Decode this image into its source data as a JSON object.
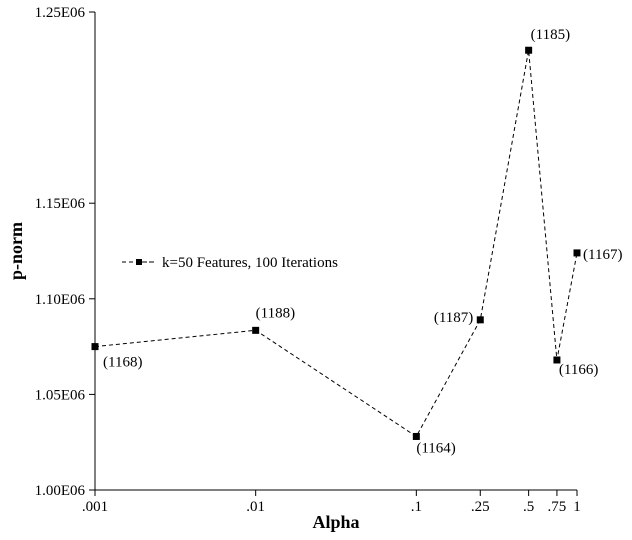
{
  "chart_data": {
    "type": "line",
    "xlabel": "Alpha",
    "ylabel": "p-norm",
    "x_scale": "log",
    "x_ticks": [
      {
        "value": 0.001,
        "label": ".001"
      },
      {
        "value": 0.01,
        "label": ".01"
      },
      {
        "value": 0.1,
        "label": ".1"
      },
      {
        "value": 0.25,
        "label": ".25"
      },
      {
        "value": 0.5,
        "label": ".5"
      },
      {
        "value": 0.75,
        "label": ".75"
      },
      {
        "value": 1,
        "label": "1"
      }
    ],
    "y_ticks": [
      {
        "value": 1000000,
        "label": "1.00E06"
      },
      {
        "value": 1050000,
        "label": "1.05E06"
      },
      {
        "value": 1100000,
        "label": "1.10E06"
      },
      {
        "value": 1150000,
        "label": "1.15E06"
      },
      {
        "value": 1250000,
        "label": "1.25E06"
      }
    ],
    "ylim": [
      1000000,
      1250000
    ],
    "xlim": [
      0.001,
      1
    ],
    "grid": false,
    "legend_position": "center-left",
    "series": [
      {
        "name": "k=50 Features, 100 Iterations",
        "line_style": "dashed",
        "marker": "square",
        "color": "#000000",
        "points": [
          {
            "x": 0.001,
            "y": 1075000,
            "label": "(1168)"
          },
          {
            "x": 0.01,
            "y": 1083500,
            "label": "(1188)"
          },
          {
            "x": 0.1,
            "y": 1028000,
            "label": "(1164)"
          },
          {
            "x": 0.25,
            "y": 1089000,
            "label": "(1187)"
          },
          {
            "x": 0.5,
            "y": 1230000,
            "label": "(1185)"
          },
          {
            "x": 0.75,
            "y": 1068000,
            "label": "(1166)"
          },
          {
            "x": 1,
            "y": 1124000,
            "label": "(1167)"
          }
        ]
      }
    ]
  }
}
